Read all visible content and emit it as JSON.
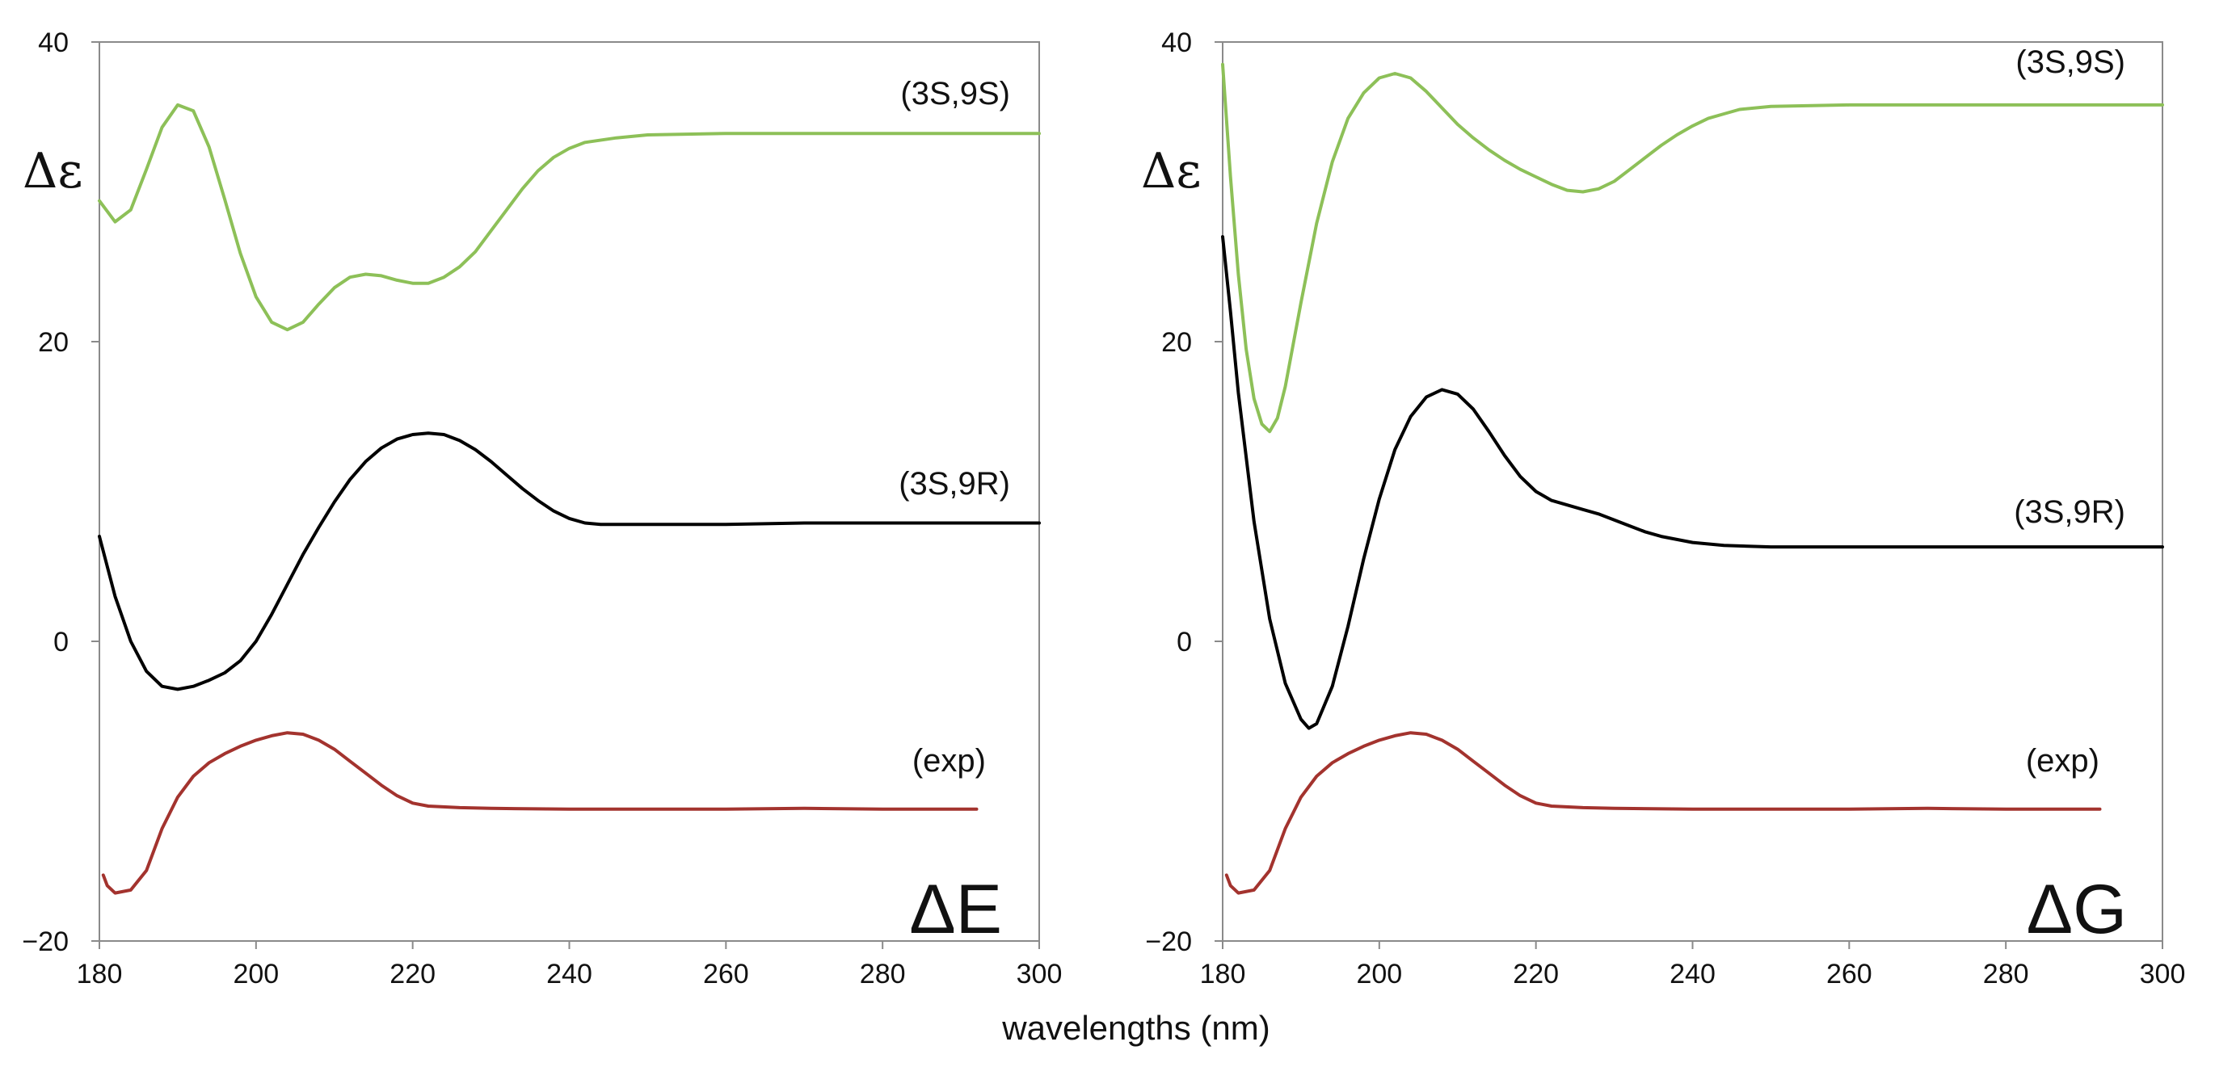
{
  "figure": {
    "xlabel": "wavelengths (nm)"
  },
  "chart_data": [
    {
      "type": "line",
      "panel_label": "ΔE",
      "ylabel": "Δε",
      "xlim": [
        180,
        300
      ],
      "ylim": [
        -20,
        40
      ],
      "x_ticks": [
        180,
        200,
        220,
        240,
        260,
        280,
        300
      ],
      "y_ticks": [
        -20,
        0,
        20,
        40
      ],
      "x_tick_labels": [
        "180",
        "200",
        "220",
        "240",
        "260",
        "280",
        "300"
      ],
      "y_tick_labels": [
        "−20",
        "0",
        "20",
        "40"
      ],
      "series": [
        {
          "name": "(3S,9S)",
          "color": "#8dc058",
          "points": [
            [
              180,
              29.4
            ],
            [
              182,
              28.0
            ],
            [
              184,
              28.8
            ],
            [
              186,
              31.5
            ],
            [
              188,
              34.3
            ],
            [
              190,
              35.8
            ],
            [
              192,
              35.4
            ],
            [
              194,
              33.0
            ],
            [
              196,
              29.5
            ],
            [
              198,
              25.9
            ],
            [
              200,
              23.0
            ],
            [
              202,
              21.3
            ],
            [
              204,
              20.8
            ],
            [
              206,
              21.3
            ],
            [
              208,
              22.5
            ],
            [
              210,
              23.6
            ],
            [
              212,
              24.3
            ],
            [
              214,
              24.5
            ],
            [
              216,
              24.4
            ],
            [
              218,
              24.1
            ],
            [
              220,
              23.9
            ],
            [
              222,
              23.9
            ],
            [
              224,
              24.3
            ],
            [
              226,
              25.0
            ],
            [
              228,
              26.0
            ],
            [
              230,
              27.4
            ],
            [
              232,
              28.8
            ],
            [
              234,
              30.2
            ],
            [
              236,
              31.4
            ],
            [
              238,
              32.3
            ],
            [
              240,
              32.9
            ],
            [
              242,
              33.3
            ],
            [
              246,
              33.6
            ],
            [
              250,
              33.8
            ],
            [
              260,
              33.9
            ],
            [
              300,
              33.9
            ]
          ]
        },
        {
          "name": "(3S,9R)",
          "color": "#000000",
          "points": [
            [
              180,
              7.0
            ],
            [
              182,
              3.0
            ],
            [
              184,
              0.0
            ],
            [
              186,
              -2.0
            ],
            [
              188,
              -3.0
            ],
            [
              190,
              -3.2
            ],
            [
              192,
              -3.0
            ],
            [
              194,
              -2.6
            ],
            [
              196,
              -2.1
            ],
            [
              198,
              -1.3
            ],
            [
              200,
              0.0
            ],
            [
              202,
              1.8
            ],
            [
              204,
              3.8
            ],
            [
              206,
              5.8
            ],
            [
              208,
              7.6
            ],
            [
              210,
              9.3
            ],
            [
              212,
              10.8
            ],
            [
              214,
              12.0
            ],
            [
              216,
              12.9
            ],
            [
              218,
              13.5
            ],
            [
              220,
              13.8
            ],
            [
              222,
              13.9
            ],
            [
              224,
              13.8
            ],
            [
              226,
              13.4
            ],
            [
              228,
              12.8
            ],
            [
              230,
              12.0
            ],
            [
              232,
              11.1
            ],
            [
              234,
              10.2
            ],
            [
              236,
              9.4
            ],
            [
              238,
              8.7
            ],
            [
              240,
              8.2
            ],
            [
              242,
              7.9
            ],
            [
              244,
              7.8
            ],
            [
              250,
              7.8
            ],
            [
              260,
              7.8
            ],
            [
              270,
              7.9
            ],
            [
              300,
              7.9
            ]
          ]
        },
        {
          "name": "(exp)",
          "color": "#a3332e",
          "points": [
            [
              180.5,
              -15.6
            ],
            [
              181,
              -16.3
            ],
            [
              182,
              -16.8
            ],
            [
              184,
              -16.6
            ],
            [
              186,
              -15.3
            ],
            [
              188,
              -12.5
            ],
            [
              190,
              -10.4
            ],
            [
              192,
              -9.0
            ],
            [
              194,
              -8.1
            ],
            [
              196,
              -7.5
            ],
            [
              198,
              -7.0
            ],
            [
              200,
              -6.6
            ],
            [
              202,
              -6.3
            ],
            [
              204,
              -6.1
            ],
            [
              206,
              -6.2
            ],
            [
              208,
              -6.6
            ],
            [
              210,
              -7.2
            ],
            [
              212,
              -8.0
            ],
            [
              214,
              -8.8
            ],
            [
              216,
              -9.6
            ],
            [
              218,
              -10.3
            ],
            [
              220,
              -10.8
            ],
            [
              222,
              -11.0
            ],
            [
              226,
              -11.1
            ],
            [
              230,
              -11.15
            ],
            [
              240,
              -11.2
            ],
            [
              250,
              -11.2
            ],
            [
              260,
              -11.2
            ],
            [
              270,
              -11.15
            ],
            [
              280,
              -11.2
            ],
            [
              292,
              -11.2
            ]
          ]
        }
      ]
    },
    {
      "type": "line",
      "panel_label": "ΔG",
      "ylabel": "Δε",
      "xlim": [
        180,
        300
      ],
      "ylim": [
        -20,
        40
      ],
      "x_ticks": [
        180,
        200,
        220,
        240,
        260,
        280,
        300
      ],
      "y_ticks": [
        -20,
        0,
        20,
        40
      ],
      "x_tick_labels": [
        "180",
        "200",
        "220",
        "240",
        "260",
        "280",
        "300"
      ],
      "y_tick_labels": [
        "−20",
        "0",
        "20",
        "40"
      ],
      "series": [
        {
          "name": "(3S,9S)",
          "color": "#8dc058",
          "points": [
            [
              180,
              38.5
            ],
            [
              181,
              31.0
            ],
            [
              182,
              24.5
            ],
            [
              183,
              19.5
            ],
            [
              184,
              16.2
            ],
            [
              185,
              14.5
            ],
            [
              186,
              14.0
            ],
            [
              187,
              14.9
            ],
            [
              188,
              17.0
            ],
            [
              190,
              22.6
            ],
            [
              192,
              27.9
            ],
            [
              194,
              32.0
            ],
            [
              196,
              34.9
            ],
            [
              198,
              36.6
            ],
            [
              200,
              37.6
            ],
            [
              202,
              37.9
            ],
            [
              204,
              37.6
            ],
            [
              206,
              36.7
            ],
            [
              208,
              35.6
            ],
            [
              210,
              34.5
            ],
            [
              212,
              33.6
            ],
            [
              214,
              32.8
            ],
            [
              216,
              32.1
            ],
            [
              218,
              31.5
            ],
            [
              220,
              31.0
            ],
            [
              222,
              30.5
            ],
            [
              224,
              30.1
            ],
            [
              226,
              30.0
            ],
            [
              228,
              30.2
            ],
            [
              230,
              30.7
            ],
            [
              232,
              31.5
            ],
            [
              234,
              32.3
            ],
            [
              236,
              33.1
            ],
            [
              238,
              33.8
            ],
            [
              240,
              34.4
            ],
            [
              242,
              34.9
            ],
            [
              244,
              35.2
            ],
            [
              246,
              35.5
            ],
            [
              250,
              35.7
            ],
            [
              260,
              35.8
            ],
            [
              300,
              35.8
            ]
          ]
        },
        {
          "name": "(3S,9R)",
          "color": "#000000",
          "points": [
            [
              180,
              27.0
            ],
            [
              181,
              22.0
            ],
            [
              182,
              16.6
            ],
            [
              184,
              8.0
            ],
            [
              186,
              1.5
            ],
            [
              188,
              -2.8
            ],
            [
              190,
              -5.2
            ],
            [
              191,
              -5.8
            ],
            [
              192,
              -5.5
            ],
            [
              194,
              -3.0
            ],
            [
              196,
              1.0
            ],
            [
              198,
              5.5
            ],
            [
              200,
              9.5
            ],
            [
              202,
              12.8
            ],
            [
              204,
              15.0
            ],
            [
              206,
              16.3
            ],
            [
              208,
              16.8
            ],
            [
              210,
              16.5
            ],
            [
              212,
              15.5
            ],
            [
              214,
              14.0
            ],
            [
              216,
              12.4
            ],
            [
              218,
              11.0
            ],
            [
              220,
              10.0
            ],
            [
              222,
              9.4
            ],
            [
              224,
              9.1
            ],
            [
              226,
              8.8
            ],
            [
              228,
              8.5
            ],
            [
              230,
              8.1
            ],
            [
              232,
              7.7
            ],
            [
              234,
              7.3
            ],
            [
              236,
              7.0
            ],
            [
              238,
              6.8
            ],
            [
              240,
              6.6
            ],
            [
              244,
              6.4
            ],
            [
              250,
              6.3
            ],
            [
              260,
              6.3
            ],
            [
              300,
              6.3
            ]
          ]
        },
        {
          "name": "(exp)",
          "color": "#a3332e",
          "points": [
            [
              180.5,
              -15.6
            ],
            [
              181,
              -16.3
            ],
            [
              182,
              -16.8
            ],
            [
              184,
              -16.6
            ],
            [
              186,
              -15.3
            ],
            [
              188,
              -12.5
            ],
            [
              190,
              -10.4
            ],
            [
              192,
              -9.0
            ],
            [
              194,
              -8.1
            ],
            [
              196,
              -7.5
            ],
            [
              198,
              -7.0
            ],
            [
              200,
              -6.6
            ],
            [
              202,
              -6.3
            ],
            [
              204,
              -6.1
            ],
            [
              206,
              -6.2
            ],
            [
              208,
              -6.6
            ],
            [
              210,
              -7.2
            ],
            [
              212,
              -8.0
            ],
            [
              214,
              -8.8
            ],
            [
              216,
              -9.6
            ],
            [
              218,
              -10.3
            ],
            [
              220,
              -10.8
            ],
            [
              222,
              -11.0
            ],
            [
              226,
              -11.1
            ],
            [
              230,
              -11.15
            ],
            [
              240,
              -11.2
            ],
            [
              250,
              -11.2
            ],
            [
              260,
              -11.2
            ],
            [
              270,
              -11.15
            ],
            [
              280,
              -11.2
            ],
            [
              292,
              -11.2
            ]
          ]
        }
      ]
    }
  ]
}
